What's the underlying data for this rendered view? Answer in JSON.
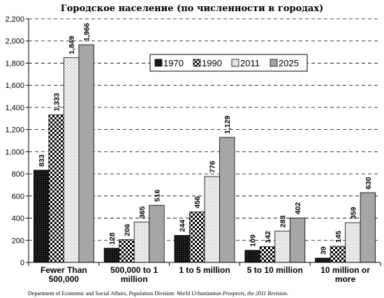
{
  "chart_data": {
    "type": "bar",
    "title": "Городское население (по численности в городах)",
    "categories": [
      [
        "Fewer Than",
        "500,000"
      ],
      [
        "500,000 to 1",
        "million"
      ],
      [
        "1 to 5 million"
      ],
      [
        "5 to 10 million"
      ],
      [
        "10 million or",
        "more"
      ]
    ],
    "series": [
      {
        "name": "1970",
        "values": [
          833,
          128,
          244,
          109,
          39
        ],
        "pattern": "dark",
        "color": "#1a1a1a"
      },
      {
        "name": "1990",
        "values": [
          1333,
          206,
          456,
          142,
          145
        ],
        "pattern": "checker",
        "color": "#000000"
      },
      {
        "name": "2011",
        "values": [
          1849,
          365,
          776,
          283,
          359
        ],
        "pattern": "dots",
        "color": "#d9d9d9"
      },
      {
        "name": "2025",
        "values": [
          1966,
          516,
          1129,
          402,
          630
        ],
        "pattern": "gray",
        "color": "#a6a6a6"
      }
    ],
    "data_labels": [
      [
        "833",
        "128",
        "244",
        "109",
        "39"
      ],
      [
        "1,333",
        "206",
        "456",
        "142",
        "145"
      ],
      [
        "1,849",
        "365",
        "776",
        "283",
        "359"
      ],
      [
        "1,966",
        "516",
        "1,129",
        "402",
        "630"
      ]
    ],
    "ylim": [
      0,
      2200
    ],
    "yticks": [
      0,
      200,
      400,
      600,
      800,
      1000,
      1200,
      1400,
      1600,
      1800,
      2000,
      2200
    ],
    "ytick_labels": [
      "0",
      "200",
      "400",
      "600",
      "800",
      "1,000",
      "1,200",
      "1,400",
      "1,600",
      "1,800",
      "2,000",
      "2,200"
    ],
    "grid": true,
    "legend_position": "top-right"
  },
  "footer": {
    "prefix": "Department of Economic and Social Affairs, Population Division: ",
    "italic": "World Urbanization Prospects, the 2011 Revision",
    "suffix": "."
  }
}
